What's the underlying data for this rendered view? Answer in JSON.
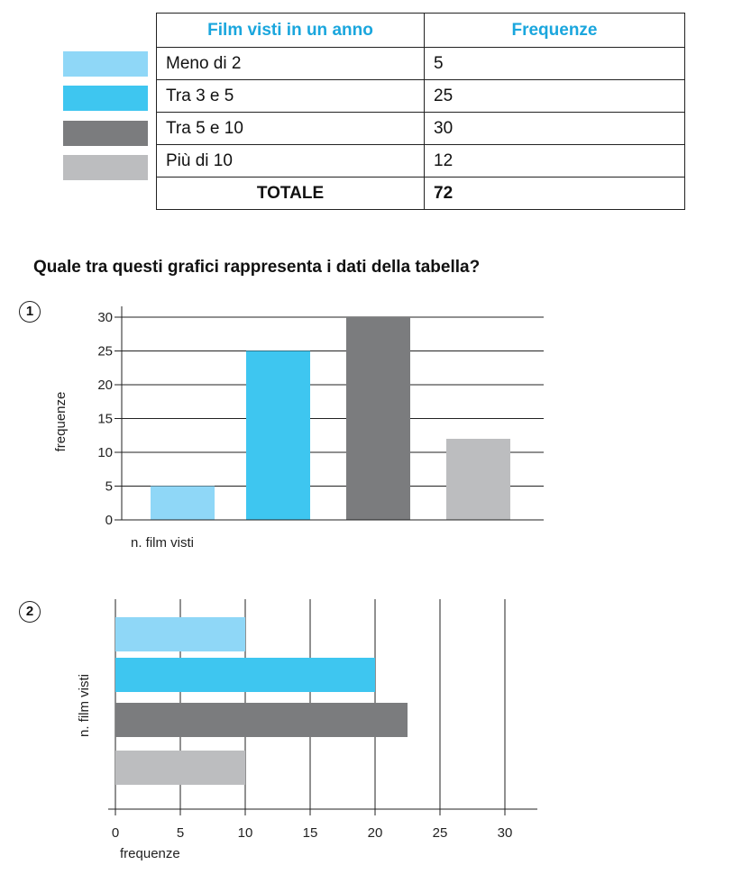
{
  "table": {
    "headers": [
      "Film visti in un anno",
      "Frequenze"
    ],
    "rows": [
      {
        "label": "Meno di 2",
        "value": "5",
        "color": "#8fd7f7"
      },
      {
        "label": "Tra 3 e 5",
        "value": "25",
        "color": "#3ec6f0"
      },
      {
        "label": "Tra 5 e 10",
        "value": "30",
        "color": "#7b7c7e"
      },
      {
        "label": "Più di 10",
        "value": "12",
        "color": "#bcbdbf"
      }
    ],
    "total_label": "TOTALE",
    "total_value": "72"
  },
  "question": "Quale tra questi grafici rappresenta i dati della tabella?",
  "chart_data": [
    {
      "type": "bar",
      "badge": "1",
      "orientation": "vertical",
      "xlabel": "n. film visti",
      "ylabel": "frequenze",
      "values": [
        5,
        25,
        30,
        12
      ],
      "colors": [
        "#8fd7f7",
        "#3ec6f0",
        "#7b7c7e",
        "#bcbdbf"
      ],
      "ylim": [
        0,
        30
      ],
      "ticks": [
        0,
        5,
        10,
        15,
        20,
        25,
        30
      ],
      "grid": true
    },
    {
      "type": "bar",
      "badge": "2",
      "orientation": "horizontal",
      "xlabel": "frequenze",
      "ylabel": "n. film visti",
      "values": [
        10,
        20,
        22.5,
        10
      ],
      "colors": [
        "#8fd7f7",
        "#3ec6f0",
        "#7b7c7e",
        "#bcbdbf"
      ],
      "xlim": [
        0,
        30
      ],
      "ticks": [
        0,
        5,
        10,
        15,
        20,
        25,
        30
      ],
      "grid": true
    }
  ]
}
